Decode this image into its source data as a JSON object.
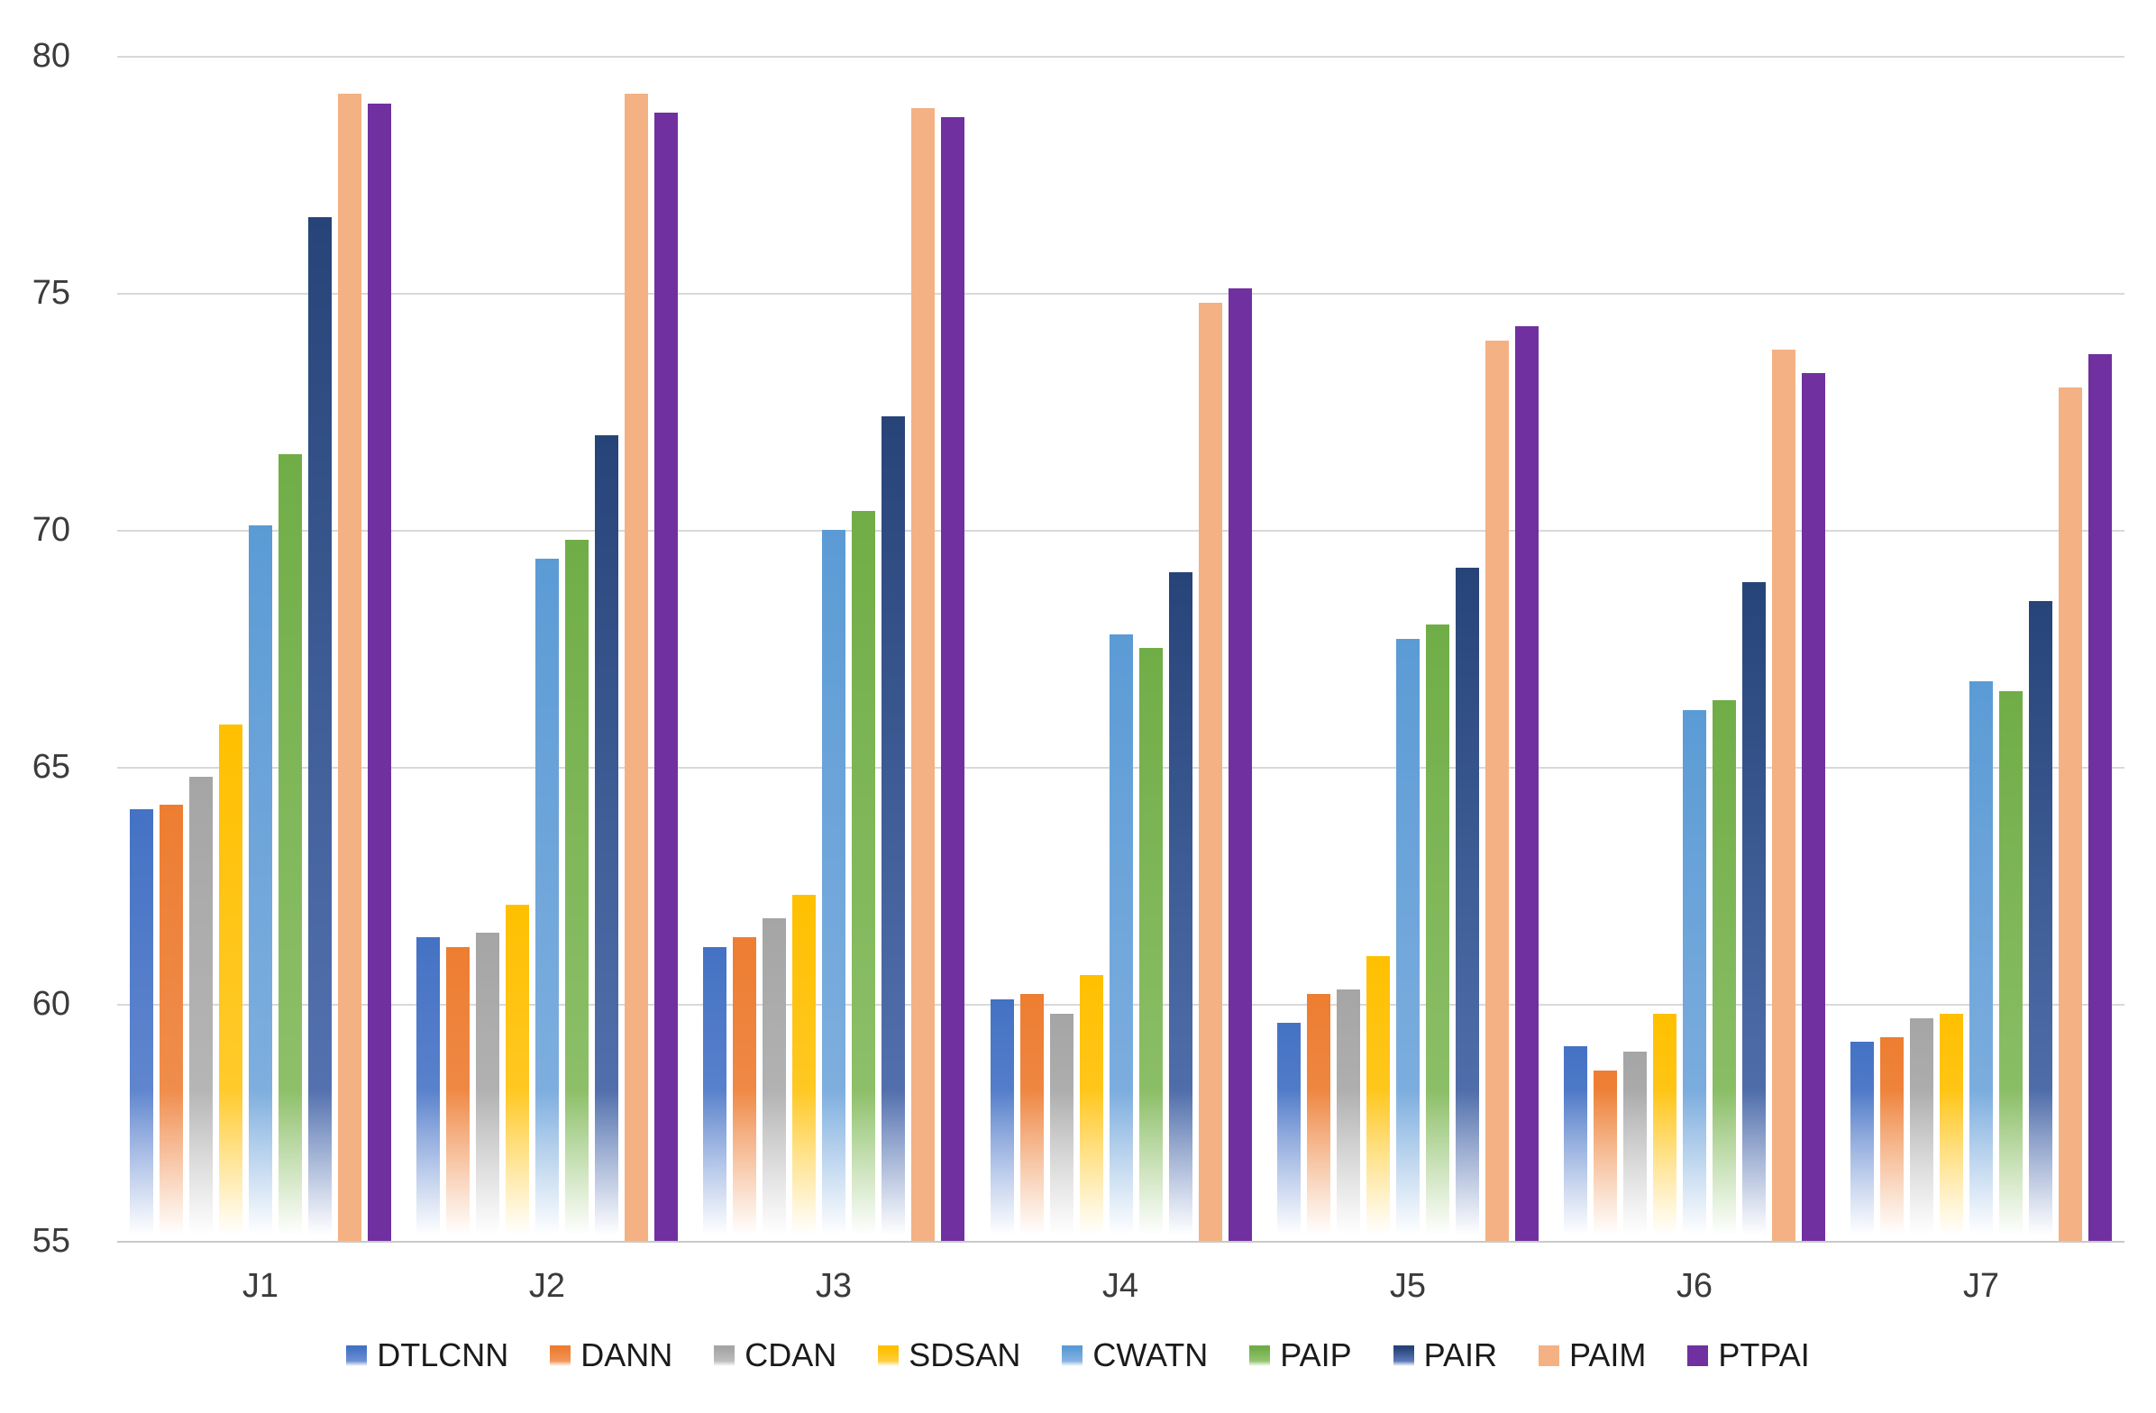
{
  "chart_data": {
    "type": "bar",
    "title": "",
    "xlabel": "",
    "ylabel": "",
    "categories": [
      "J1",
      "J2",
      "J3",
      "J4",
      "J5",
      "J6",
      "J7"
    ],
    "series": [
      {
        "name": "DTLCNN",
        "color": "#4472C4",
        "color_light": "#6e90d4",
        "fade": true,
        "values": [
          64.1,
          61.4,
          61.2,
          60.1,
          59.6,
          59.1,
          59.2
        ]
      },
      {
        "name": "DANN",
        "color": "#ED7D31",
        "color_light": "#f1955a",
        "fade": true,
        "values": [
          64.2,
          61.2,
          61.4,
          60.2,
          60.2,
          58.6,
          59.3
        ]
      },
      {
        "name": "CDAN",
        "color": "#A5A5A5",
        "color_light": "#bdbdbd",
        "fade": true,
        "values": [
          64.8,
          61.5,
          61.8,
          59.8,
          60.3,
          59.0,
          59.7
        ]
      },
      {
        "name": "SDSAN",
        "color": "#FFC000",
        "color_light": "#ffce3d",
        "fade": true,
        "values": [
          65.9,
          62.1,
          62.3,
          60.6,
          61.0,
          59.8,
          59.8
        ]
      },
      {
        "name": "CWATN",
        "color": "#5B9BD5",
        "color_light": "#87b3e1",
        "fade": true,
        "values": [
          70.1,
          69.4,
          70.0,
          67.8,
          67.7,
          66.2,
          66.8
        ]
      },
      {
        "name": "PAIP",
        "color": "#70AD47",
        "color_light": "#94c471",
        "fade": true,
        "values": [
          71.6,
          69.8,
          70.4,
          67.5,
          68.0,
          66.4,
          66.6
        ]
      },
      {
        "name": "PAIR",
        "color": "#264478",
        "color_light": "#5b79b8",
        "fade": true,
        "values": [
          76.6,
          72.0,
          72.4,
          69.1,
          69.2,
          68.9,
          68.5
        ]
      },
      {
        "name": "PAIM",
        "color": "#F4B183",
        "color_light": "#F4B183",
        "fade": false,
        "values": [
          79.2,
          79.2,
          78.9,
          74.8,
          74.0,
          73.8,
          73.0
        ]
      },
      {
        "name": "PTPAI",
        "color": "#7030A0",
        "color_light": "#7030A0",
        "fade": false,
        "values": [
          79.0,
          78.8,
          78.7,
          75.1,
          74.3,
          73.3,
          73.7
        ]
      }
    ],
    "y_axis": {
      "min": 55,
      "max": 80,
      "step": 5,
      "tick_labels": [
        "55",
        "60",
        "65",
        "70",
        "75",
        "80"
      ]
    },
    "grid": true,
    "legend_position": "bottom",
    "gridline_color": "#d9d9d9",
    "text_color": "#3b3b3b",
    "background_color": "#ffffff"
  }
}
